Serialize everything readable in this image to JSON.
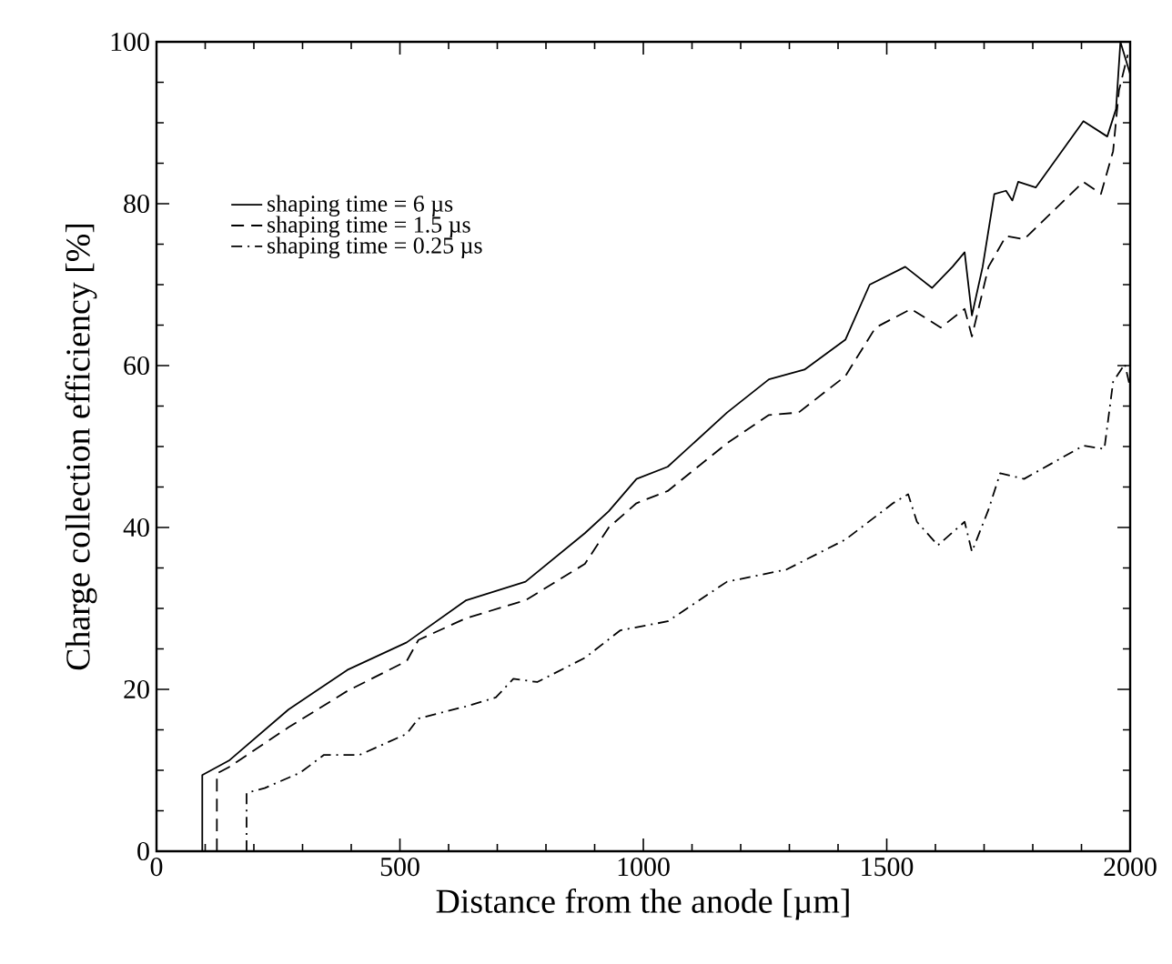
{
  "chart_data": {
    "type": "line",
    "xlabel": "Distance from the anode [µm]",
    "ylabel": "Charge collection efficiency [%]",
    "xlim": [
      0,
      2000
    ],
    "ylim": [
      0,
      100
    ],
    "xticks": [
      0,
      500,
      1000,
      1500,
      2000
    ],
    "yticks": [
      0,
      20,
      40,
      60,
      80,
      100
    ],
    "grid": false,
    "legend": "top left",
    "marker": "none",
    "series": [
      {
        "name": "shaping time = 6 µs",
        "color": "#000000",
        "line_style": "solid",
        "x": [
          94,
          94,
          149,
          271,
          392,
          514,
          636,
          758,
          880,
          929,
          986,
          1050,
          1172,
          1258,
          1331,
          1415,
          1465,
          1538,
          1593,
          1635,
          1660,
          1675,
          1697,
          1721,
          1745,
          1758,
          1770,
          1806,
          1904,
          1953,
          1971,
          1980,
          2000
        ],
        "values": [
          0,
          9.4,
          11.2,
          17.5,
          22.4,
          25.8,
          31,
          33.3,
          39.3,
          42,
          46,
          47.5,
          54.2,
          58.3,
          59.5,
          63.2,
          70,
          72.2,
          69.6,
          72.2,
          74,
          66.2,
          72.2,
          81.2,
          81.6,
          80.4,
          82.7,
          82,
          90.2,
          88.3,
          91.7,
          100,
          96
        ]
      },
      {
        "name": "shaping time = 1.5 µs",
        "color": "#000000",
        "line_style": "dashed",
        "x": [
          124,
          124,
          149,
          271,
          392,
          514,
          538,
          636,
          758,
          880,
          929,
          986,
          1050,
          1172,
          1258,
          1319,
          1415,
          1477,
          1550,
          1611,
          1660,
          1675,
          1709,
          1745,
          1782,
          1904,
          1940,
          1965,
          1977,
          1995
        ],
        "values": [
          0,
          9.6,
          10.4,
          15.3,
          19.8,
          23.5,
          26.1,
          28.8,
          31,
          35.5,
          40,
          43,
          44.5,
          50.4,
          53.9,
          54.2,
          58.7,
          64.7,
          67,
          64.7,
          67,
          63.6,
          72.2,
          76,
          75.6,
          82.7,
          81.2,
          86.5,
          94,
          98.4
        ]
      },
      {
        "name": "shaping time = 0.25 µs",
        "color": "#000000",
        "line_style": "dashdot",
        "x": [
          185,
          185,
          222,
          295,
          344,
          417,
          514,
          538,
          636,
          697,
          733,
          782,
          880,
          953,
          1050,
          1172,
          1294,
          1415,
          1513,
          1544,
          1562,
          1605,
          1660,
          1675,
          1709,
          1733,
          1782,
          1904,
          1947,
          1965,
          1989,
          2000
        ],
        "values": [
          0,
          7.2,
          7.8,
          9.7,
          11.9,
          11.9,
          14.5,
          16.4,
          17.9,
          19,
          21.3,
          20.9,
          23.9,
          27.3,
          28.4,
          33.3,
          34.8,
          38.5,
          43,
          44.1,
          40.7,
          37.8,
          40.7,
          37,
          42.2,
          46.7,
          46,
          50.1,
          49.7,
          58,
          60.2,
          57.3
        ]
      }
    ]
  }
}
